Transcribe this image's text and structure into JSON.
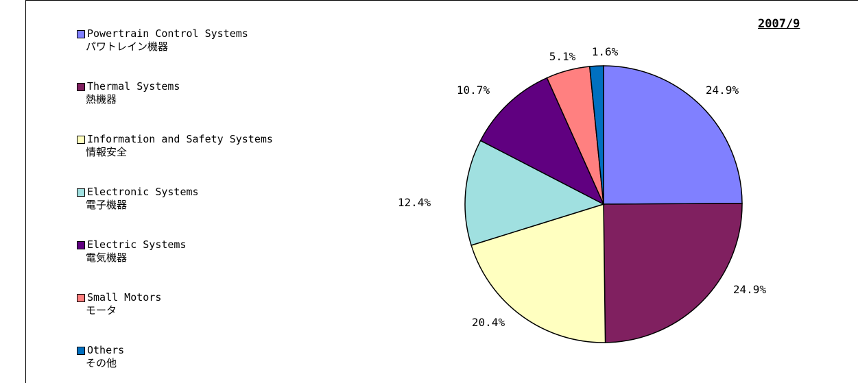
{
  "header": {
    "date": "2007/9"
  },
  "chart_data": {
    "type": "pie",
    "title": "",
    "legend_placement": "left",
    "slices": [
      {
        "label": "Powertrain Control Systems",
        "label_ja": "パワトレイン機器",
        "value": 24.9,
        "value_label": "24.9%",
        "color": "#8080ff"
      },
      {
        "label": "Thermal Systems",
        "label_ja": "熱機器",
        "value": 24.9,
        "value_label": "24.9%",
        "color": "#802060"
      },
      {
        "label": "Information and Safety Systems",
        "label_ja": "情報安全",
        "value": 20.4,
        "value_label": "20.4%",
        "color": "#ffffc0"
      },
      {
        "label": "Electronic Systems",
        "label_ja": "電子機器",
        "value": 12.4,
        "value_label": "12.4%",
        "color": "#a0e0e0"
      },
      {
        "label": "Electric Systems",
        "label_ja": "電気機器",
        "value": 10.7,
        "value_label": "10.7%",
        "color": "#600080"
      },
      {
        "label": "Small Motors",
        "label_ja": "モータ",
        "value": 5.1,
        "value_label": "5.1%",
        "color": "#ff8080"
      },
      {
        "label": "Others",
        "label_ja": "その他",
        "value": 1.6,
        "value_label": "1.6%",
        "color": "#0070c0"
      }
    ]
  }
}
